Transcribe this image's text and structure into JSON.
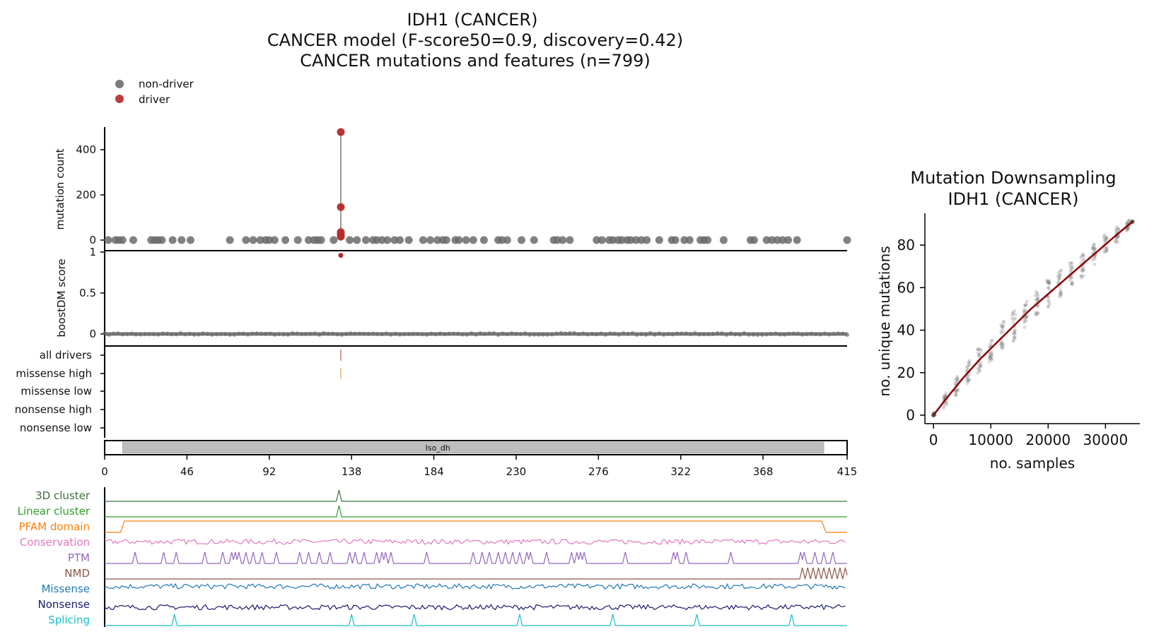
{
  "title": {
    "line1": "IDH1 (CANCER)",
    "line2": "CANCER model (F-score50=0.9, discovery=0.42)",
    "line3": "CANCER mutations and features (n=799)"
  },
  "legend": {
    "placement": "top-left",
    "items": [
      {
        "label": "non-driver",
        "color": "#6b6b6b"
      },
      {
        "label": "driver",
        "color": "#b52a2a"
      }
    ]
  },
  "colors": {
    "nondriver": "#6b6b6b",
    "driver": "#b52a2a",
    "fit_line": "#8b0000",
    "domain_bar": "#bdbdbd",
    "all_drivers_tick": "#c87a72",
    "missense_high_tick": "#e9b27a"
  },
  "chart_data": [
    {
      "type": "scatter",
      "panel": "mutation-count",
      "ylabel": "mutation count",
      "yticks": [
        0,
        200,
        400
      ],
      "ylim": [
        0,
        500
      ],
      "xlim": [
        0,
        415
      ],
      "driver_points": [
        {
          "x": 132,
          "y": 478
        },
        {
          "x": 132,
          "y": 146
        },
        {
          "x": 132,
          "y": 35
        },
        {
          "x": 132,
          "y": 25
        },
        {
          "x": 132,
          "y": 15
        }
      ],
      "nondriver_positions": [
        2,
        6,
        8,
        10,
        16,
        26,
        28,
        30,
        32,
        38,
        43,
        48,
        70,
        79,
        83,
        87,
        90,
        92,
        95,
        101,
        108,
        114,
        117,
        119,
        121,
        128,
        137,
        141,
        146,
        150,
        152,
        155,
        158,
        162,
        165,
        170,
        178,
        182,
        186,
        189,
        191,
        196,
        198,
        202,
        206,
        212,
        220,
        222,
        225,
        233,
        240,
        251,
        253,
        256,
        260,
        275,
        278,
        282,
        284,
        287,
        289,
        292,
        294,
        297,
        300,
        303,
        310,
        317,
        319,
        324,
        327,
        333,
        335,
        337,
        346,
        361,
        363,
        370,
        373,
        376,
        379,
        382,
        387,
        415
      ]
    },
    {
      "type": "scatter",
      "panel": "boostdm-score",
      "ylabel": "boostDM score",
      "yticks": [
        "0",
        "0.5",
        "1"
      ],
      "ylim": [
        0,
        1
      ],
      "xlim": [
        0,
        415
      ],
      "driver_points": [
        {
          "x": 132,
          "y": 0.96
        }
      ],
      "nondriver_baseline": 0
    },
    {
      "type": "table",
      "panel": "driver-tracks",
      "rows": [
        "all drivers",
        "missense high",
        "missense low",
        "nonsense high",
        "nonsense low"
      ],
      "ticks": [
        {
          "row": "all drivers",
          "x": 132
        },
        {
          "row": "missense high",
          "x": 132
        }
      ]
    },
    {
      "type": "bar",
      "panel": "domain-axis",
      "domains": [
        {
          "name": "Iso_dh",
          "start": 10,
          "end": 402
        }
      ],
      "xticks": [
        0,
        46,
        92,
        138,
        184,
        230,
        276,
        322,
        368,
        415
      ],
      "xlim": [
        0,
        415
      ]
    },
    {
      "type": "line",
      "panel": "feature-tracks",
      "tracks": [
        {
          "name": "3D cluster",
          "color": "#3f6f3f",
          "kind": "peaks",
          "peaks": [
            131
          ]
        },
        {
          "name": "Linear cluster",
          "color": "#2ca02c",
          "kind": "peaks",
          "peaks": [
            131
          ]
        },
        {
          "name": "PFAM domain",
          "color": "#ff7f0e",
          "kind": "step",
          "start": 10,
          "end": 402
        },
        {
          "name": "Conservation",
          "color": "#e377c2",
          "kind": "noise",
          "level": 0.55
        },
        {
          "name": "PTM",
          "color": "#9467bd",
          "kind": "peaks",
          "peaks": [
            17,
            33,
            40,
            56,
            66,
            71,
            73,
            75,
            79,
            83,
            88,
            96,
            109,
            114,
            120,
            126,
            137,
            140,
            145,
            152,
            155,
            157,
            160,
            180,
            206,
            211,
            215,
            220,
            224,
            228,
            232,
            236,
            238,
            247,
            261,
            264,
            266,
            268,
            291,
            318,
            320,
            325,
            350,
            389,
            391,
            397,
            402,
            407
          ]
        },
        {
          "name": "NMD",
          "color": "#8c564b",
          "kind": "peaks",
          "peaks": [
            390,
            393,
            396,
            399,
            402,
            405,
            408,
            411,
            414
          ]
        },
        {
          "name": "Missense",
          "color": "#1f77b4",
          "kind": "noise",
          "level": 0.72
        },
        {
          "name": "Nonsense",
          "color": "#1a1a6e",
          "kind": "noise",
          "level": 0.25
        },
        {
          "name": "Splicing",
          "color": "#17becf",
          "kind": "peaks",
          "peaks": [
            39,
            138,
            173,
            232,
            284,
            331,
            384
          ]
        }
      ],
      "xlim": [
        0,
        415
      ]
    },
    {
      "type": "scatter",
      "panel": "downsampling",
      "title": "Mutation Downsampling\nIDH1 (CANCER)",
      "title_lines": [
        "Mutation Downsampling",
        "IDH1 (CANCER)"
      ],
      "xlabel": "no. samples",
      "ylabel": "no. unique mutations",
      "xticks": [
        0,
        10000,
        20000,
        30000
      ],
      "yticks": [
        0,
        20,
        40,
        60,
        80
      ],
      "xlim": [
        -1500,
        36000
      ],
      "ylim": [
        -4,
        95
      ],
      "fit_line": {
        "x": [
          0,
          2000,
          5000,
          8000,
          11000,
          14000,
          17000,
          20000,
          23000,
          26000,
          29000,
          32000,
          34700
        ],
        "y": [
          0,
          7,
          17,
          26,
          34,
          42,
          50,
          57,
          64,
          71,
          78,
          85,
          91
        ]
      },
      "sample_cloud": {
        "x_steps": [
          0,
          2000,
          4000,
          6000,
          8000,
          10000,
          12000,
          14000,
          16000,
          18000,
          20000,
          22000,
          24000,
          26000,
          28000,
          30000,
          32000,
          34000
        ],
        "spread": [
          1,
          3,
          4,
          5,
          6,
          6,
          7,
          7,
          7,
          7,
          7,
          6,
          6,
          6,
          5,
          5,
          4,
          2
        ]
      }
    }
  ]
}
